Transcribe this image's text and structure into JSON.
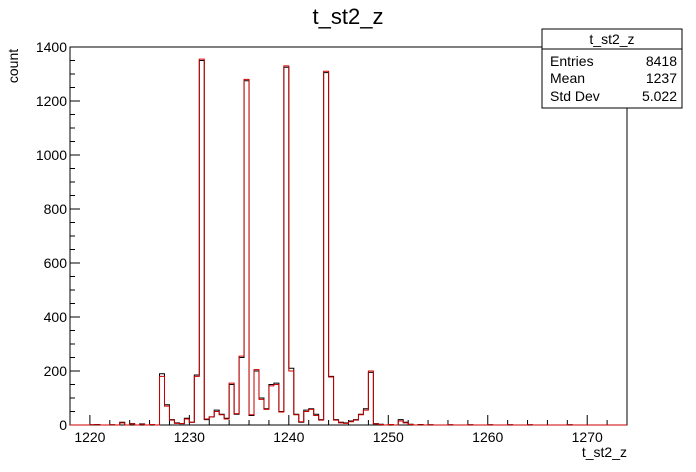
{
  "chart_data": {
    "type": "histogram",
    "title": "t_st2_z",
    "xlabel": "t_st2_z",
    "ylabel": "count",
    "xlim": [
      1218,
      1274
    ],
    "ylim": [
      0,
      1400
    ],
    "bin_width": 0.5,
    "x_ticks": [
      1220,
      1230,
      1240,
      1250,
      1260,
      1270
    ],
    "y_ticks": [
      0,
      200,
      400,
      600,
      800,
      1000,
      1200,
      1400
    ],
    "stats_box": {
      "title": "t_st2_z",
      "rows": [
        {
          "label": "Entries",
          "value": "8418"
        },
        {
          "label": "Mean",
          "value": "1237"
        },
        {
          "label": "Std Dev",
          "value": "5.022"
        }
      ]
    },
    "series": [
      {
        "color": "#000000",
        "bins": [
          [
            1220,
            1
          ],
          [
            1220.5,
            2
          ],
          [
            1222,
            1
          ],
          [
            1223,
            10
          ],
          [
            1224,
            5
          ],
          [
            1225,
            4
          ],
          [
            1226,
            2
          ],
          [
            1227,
            190
          ],
          [
            1227.5,
            75
          ],
          [
            1228,
            20
          ],
          [
            1228.5,
            8
          ],
          [
            1229,
            5
          ],
          [
            1229.5,
            25
          ],
          [
            1230,
            10
          ],
          [
            1230.5,
            185
          ],
          [
            1231,
            1350
          ],
          [
            1231.5,
            20
          ],
          [
            1232,
            30
          ],
          [
            1232.5,
            55
          ],
          [
            1233,
            40
          ],
          [
            1233.5,
            25
          ],
          [
            1234,
            150
          ],
          [
            1234.5,
            40
          ],
          [
            1235,
            250
          ],
          [
            1235.5,
            1275
          ],
          [
            1236,
            35
          ],
          [
            1236.5,
            200
          ],
          [
            1237,
            100
          ],
          [
            1237.5,
            60
          ],
          [
            1238,
            150
          ],
          [
            1238.5,
            155
          ],
          [
            1239,
            50
          ],
          [
            1239.5,
            1325
          ],
          [
            1240,
            210
          ],
          [
            1240.5,
            40
          ],
          [
            1241,
            10
          ],
          [
            1241.5,
            55
          ],
          [
            1242,
            60
          ],
          [
            1242.5,
            40
          ],
          [
            1243,
            20
          ],
          [
            1243.5,
            1305
          ],
          [
            1244,
            180
          ],
          [
            1244.5,
            20
          ],
          [
            1245,
            10
          ],
          [
            1245.5,
            8
          ],
          [
            1246,
            15
          ],
          [
            1246.5,
            20
          ],
          [
            1247,
            40
          ],
          [
            1247.5,
            60
          ],
          [
            1248,
            195
          ],
          [
            1248.5,
            5
          ],
          [
            1249,
            3
          ],
          [
            1250,
            2
          ],
          [
            1251,
            20
          ],
          [
            1251.5,
            10
          ],
          [
            1252,
            3
          ],
          [
            1253,
            2
          ],
          [
            1254,
            1
          ],
          [
            1256,
            1
          ],
          [
            1258,
            1
          ],
          [
            1260,
            1
          ],
          [
            1262,
            1
          ],
          [
            1264,
            1
          ],
          [
            1268,
            1
          ]
        ]
      },
      {
        "color": "#cc0000",
        "bins": [
          [
            1220,
            1
          ],
          [
            1220.5,
            1
          ],
          [
            1222,
            1
          ],
          [
            1223,
            8
          ],
          [
            1224,
            4
          ],
          [
            1225,
            3
          ],
          [
            1226,
            2
          ],
          [
            1227,
            180
          ],
          [
            1227.5,
            70
          ],
          [
            1228,
            18
          ],
          [
            1228.5,
            6
          ],
          [
            1229,
            5
          ],
          [
            1229.5,
            22
          ],
          [
            1230,
            10
          ],
          [
            1230.5,
            180
          ],
          [
            1231,
            1355
          ],
          [
            1231.5,
            22
          ],
          [
            1232,
            30
          ],
          [
            1232.5,
            50
          ],
          [
            1233,
            38
          ],
          [
            1233.5,
            22
          ],
          [
            1234,
            155
          ],
          [
            1234.5,
            42
          ],
          [
            1235,
            255
          ],
          [
            1235.5,
            1280
          ],
          [
            1236,
            38
          ],
          [
            1236.5,
            205
          ],
          [
            1237,
            95
          ],
          [
            1237.5,
            58
          ],
          [
            1238,
            145
          ],
          [
            1238.5,
            150
          ],
          [
            1239,
            48
          ],
          [
            1239.5,
            1330
          ],
          [
            1240,
            200
          ],
          [
            1240.5,
            38
          ],
          [
            1241,
            12
          ],
          [
            1241.5,
            50
          ],
          [
            1242,
            58
          ],
          [
            1242.5,
            35
          ],
          [
            1243,
            18
          ],
          [
            1243.5,
            1310
          ],
          [
            1244,
            178
          ],
          [
            1244.5,
            18
          ],
          [
            1245,
            8
          ],
          [
            1245.5,
            6
          ],
          [
            1246,
            12
          ],
          [
            1246.5,
            18
          ],
          [
            1247,
            38
          ],
          [
            1247.5,
            55
          ],
          [
            1248,
            200
          ],
          [
            1248.5,
            4
          ],
          [
            1249,
            2
          ],
          [
            1250,
            2
          ],
          [
            1251,
            15
          ],
          [
            1251.5,
            8
          ],
          [
            1252,
            2
          ],
          [
            1253,
            1
          ],
          [
            1254,
            1
          ],
          [
            1256,
            1
          ],
          [
            1258,
            1
          ],
          [
            1260,
            1
          ],
          [
            1262,
            1
          ],
          [
            1264,
            1
          ],
          [
            1268,
            1
          ]
        ]
      }
    ]
  }
}
